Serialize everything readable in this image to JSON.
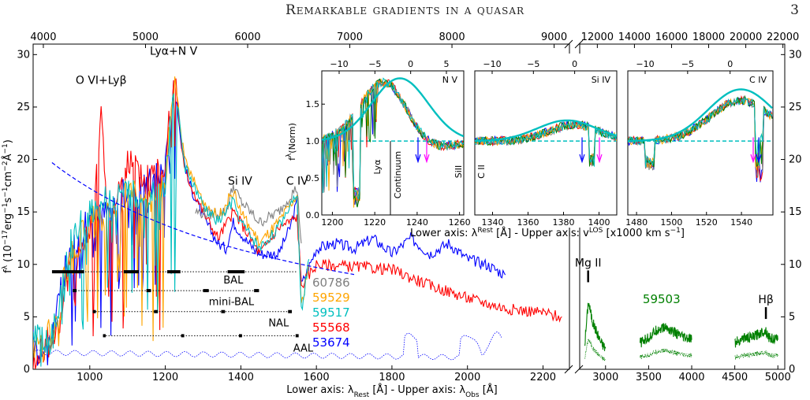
{
  "header": {
    "title": "Remarkable gradients in a quasar",
    "page_number": "3"
  },
  "chart_data": {
    "type": "line",
    "main_panel": {
      "ylabel": "f_λ (10⁻¹⁷erg⁻¹s⁻¹cm⁻²Å⁻¹)",
      "ylabel_parts": [
        "f",
        "λ",
        " (10",
        "−17",
        "erg",
        "−1",
        "s",
        "−1",
        "cm",
        "−2",
        "Å",
        "−1",
        ")"
      ],
      "xlabel_bottom": "Lower axis: λRest [Å] - Upper axis: λObs [Å]",
      "xlabel_parts": [
        "Lower axis: λ",
        "Rest",
        " [Å] - Upper axis: λ",
        "Obs",
        " [Å]"
      ],
      "ylim": [
        0,
        31
      ],
      "yticks": [
        "0",
        "5",
        "10",
        "15",
        "20",
        "25",
        "30"
      ],
      "lower_axis_left": {
        "xlim": [
          850,
          2270
        ],
        "ticks": [
          "1000",
          "1200",
          "1400",
          "1600",
          "1800",
          "2000",
          "2200"
        ]
      },
      "upper_axis_left": {
        "xlim": [
          3900,
          9150
        ],
        "ticks": [
          "4000",
          "5000",
          "6000",
          "7000",
          "8000",
          "9000"
        ]
      },
      "lower_axis_right": {
        "xlim": [
          2700,
          5080
        ],
        "ticks": [
          "3000",
          "3500",
          "4000",
          "4500",
          "5000"
        ]
      },
      "upper_axis_right": {
        "xlim": [
          11050,
          22100
        ],
        "ticks": [
          "12000",
          "14000",
          "16000",
          "18000",
          "20000",
          "22000"
        ]
      },
      "line_labels": [
        {
          "text": "O VI+Lyβ",
          "x": 1030,
          "y": 27.2
        },
        {
          "text": "Lyα+N V",
          "x": 1222,
          "y": 30.0
        },
        {
          "text": "Si IV",
          "x": 1398,
          "y": 17.6
        },
        {
          "text": "C IV",
          "x": 1549,
          "y": 17.6
        },
        {
          "text": "Mg II",
          "x": 2798,
          "y": 9.8
        },
        {
          "text": "Hβ",
          "x": 4861,
          "y": 6.3
        }
      ],
      "absorber_labels": [
        "BAL",
        "mini-BAL",
        "NAL",
        "AAL"
      ],
      "legend": [
        {
          "label": "60786",
          "color": "#808080"
        },
        {
          "label": "59529",
          "color": "#ffa500"
        },
        {
          "label": "59517",
          "color": "#00bfbf"
        },
        {
          "label": "55568",
          "color": "#ff0000"
        },
        {
          "label": "53674",
          "color": "#0000ff"
        }
      ],
      "extra_epoch": {
        "label": "59503",
        "color": "#008000"
      },
      "continuum_fit_color": "#0000ff",
      "series": [
        {
          "name": "53674",
          "color": "#0000ff",
          "x": [
            850,
            900,
            950,
            1000,
            1050,
            1100,
            1150,
            1200,
            1215,
            1225,
            1240,
            1260,
            1300,
            1340,
            1360,
            1380,
            1400,
            1420,
            1450,
            1500,
            1530,
            1549,
            1560,
            1600,
            1650,
            1700,
            1750,
            1800,
            1850,
            1900,
            1950,
            2000,
            2050,
            2100
          ],
          "y": [
            2.5,
            3.0,
            12.0,
            14.0,
            15.0,
            17.0,
            17.5,
            19.0,
            24.0,
            28.0,
            22.0,
            18.0,
            14.5,
            12.0,
            11.5,
            14.0,
            13.0,
            12.0,
            11.0,
            11.0,
            13.5,
            16.0,
            8.0,
            11.5,
            12.0,
            11.5,
            12.5,
            11.0,
            12.5,
            11.0,
            12.0,
            10.5,
            10.0,
            9.0
          ]
        },
        {
          "name": "55568",
          "color": "#ff0000",
          "x": [
            850,
            900,
            950,
            1000,
            1030,
            1050,
            1100,
            1150,
            1200,
            1225,
            1250,
            1300,
            1340,
            1380,
            1400,
            1450,
            1500,
            1549,
            1560,
            1600,
            1700,
            1800,
            1900,
            2000,
            2100,
            2200,
            2250
          ],
          "y": [
            1.0,
            3.0,
            10.0,
            13.0,
            24.0,
            14.0,
            20.0,
            18.0,
            20.0,
            28.0,
            19.0,
            15.0,
            12.5,
            15.0,
            14.0,
            11.0,
            13.5,
            14.5,
            8.0,
            10.0,
            9.8,
            9.5,
            8.0,
            6.8,
            5.8,
            5.4,
            5.0
          ]
        },
        {
          "name": "59529",
          "color": "#ffa500",
          "x": [
            850,
            900,
            950,
            1000,
            1050,
            1100,
            1150,
            1200,
            1225,
            1250,
            1300,
            1340,
            1380,
            1400,
            1450,
            1500,
            1549,
            1560,
            1580
          ],
          "y": [
            2.5,
            3.5,
            11.0,
            14.0,
            14.5,
            17.0,
            16.0,
            18.0,
            28.2,
            20.0,
            16.0,
            14.5,
            17.0,
            15.0,
            12.0,
            14.0,
            16.5,
            6.0,
            10.0
          ]
        },
        {
          "name": "59517",
          "color": "#00bfbf",
          "x": [
            850,
            900,
            950,
            1000,
            1050,
            1100,
            1150,
            1200,
            1225,
            1250,
            1300,
            1340,
            1380,
            1400,
            1450,
            1500,
            1549,
            1560,
            1580
          ],
          "y": [
            2.5,
            3.0,
            12.0,
            15.0,
            16.0,
            16.5,
            17.0,
            18.0,
            27.5,
            19.5,
            15.5,
            14.0,
            16.0,
            14.0,
            11.5,
            13.5,
            17.0,
            5.5,
            10.5
          ]
        },
        {
          "name": "60786",
          "color": "#808080",
          "x": [
            1280,
            1320,
            1360,
            1380,
            1400,
            1450,
            1500,
            1540,
            1549,
            1560
          ],
          "y": [
            15.0,
            14.8,
            15.0,
            17.5,
            16.0,
            14.0,
            15.0,
            17.0,
            17.2,
            12.0
          ]
        },
        {
          "name": "59503",
          "color": "#008000",
          "x": [
            2760,
            2800,
            2850,
            2900,
            2950,
            3000,
            3400,
            3500,
            3600,
            3700,
            3800,
            3900,
            4000,
            4500,
            4600,
            4700,
            4800,
            4861,
            4900,
            5000
          ],
          "y": [
            2.5,
            6.5,
            4.5,
            3.5,
            2.5,
            2.0,
            2.5,
            3.0,
            3.8,
            4.0,
            3.5,
            3.0,
            2.8,
            2.5,
            3.0,
            3.0,
            3.5,
            3.7,
            3.0,
            2.8
          ]
        }
      ]
    },
    "insets": [
      {
        "title": "N V",
        "xlim": [
          1195,
          1262
        ],
        "xticks": [
          "1200",
          "1220",
          "1240",
          "1260"
        ],
        "upper_ticks": [
          "−10",
          "−5",
          "0",
          "5"
        ],
        "ylim": [
          0,
          1.95
        ],
        "yticks": [
          "0.0",
          "0.5",
          "1.0",
          "1.5"
        ],
        "ylabel": "fλ(Norm)",
        "annotations": [
          "Lyα",
          "Continuum",
          "SiII"
        ]
      },
      {
        "title": "Si IV",
        "xlim": [
          1330,
          1410
        ],
        "xticks": [
          "1340",
          "1360",
          "1380",
          "1400"
        ],
        "upper_ticks": [
          "−10",
          "−5",
          "0"
        ],
        "annotations": [
          "C II"
        ]
      },
      {
        "title": "C IV",
        "xlim": [
          1475,
          1558
        ],
        "xticks": [
          "1480",
          "1500",
          "1520",
          "1540"
        ],
        "upper_ticks": [
          "−10",
          "−5",
          "0"
        ]
      }
    ],
    "inset_xlabel_parts": [
      "Lower axis: λ",
      "Rest",
      " [Å] - Upper axis: v",
      "LOS",
      " [x1000 km s",
      "−1",
      "]"
    ]
  }
}
